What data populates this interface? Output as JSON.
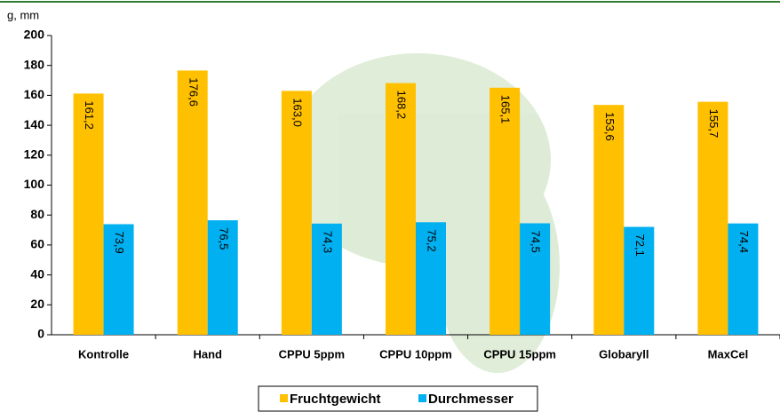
{
  "chart_data": {
    "type": "bar",
    "y_label": "g, mm",
    "categories": [
      "Kontrolle",
      "Hand",
      "CPPU 5ppm",
      "CPPU 10ppm",
      "CPPU 15ppm",
      "Globaryll",
      "MaxCel"
    ],
    "series": [
      {
        "name": "Fruchtgewicht",
        "color": "#ffc000",
        "values": [
          161.2,
          176.6,
          163.0,
          168.2,
          165.1,
          153.6,
          155.7
        ],
        "value_labels": [
          "161,2",
          "176,6",
          "163,0",
          "168,2",
          "165,1",
          "153,6",
          "155,7"
        ]
      },
      {
        "name": "Durchmesser",
        "color": "#00b0f0",
        "values": [
          73.9,
          76.5,
          74.3,
          75.2,
          74.5,
          72.1,
          74.4
        ],
        "value_labels": [
          "73,9",
          "76,5",
          "74,3",
          "75,2",
          "74,5",
          "72,1",
          "74,4"
        ]
      }
    ],
    "ylim": [
      0,
      200
    ],
    "yticks": [
      0,
      20,
      40,
      60,
      80,
      100,
      120,
      140,
      160,
      180,
      200
    ],
    "grid": false
  }
}
